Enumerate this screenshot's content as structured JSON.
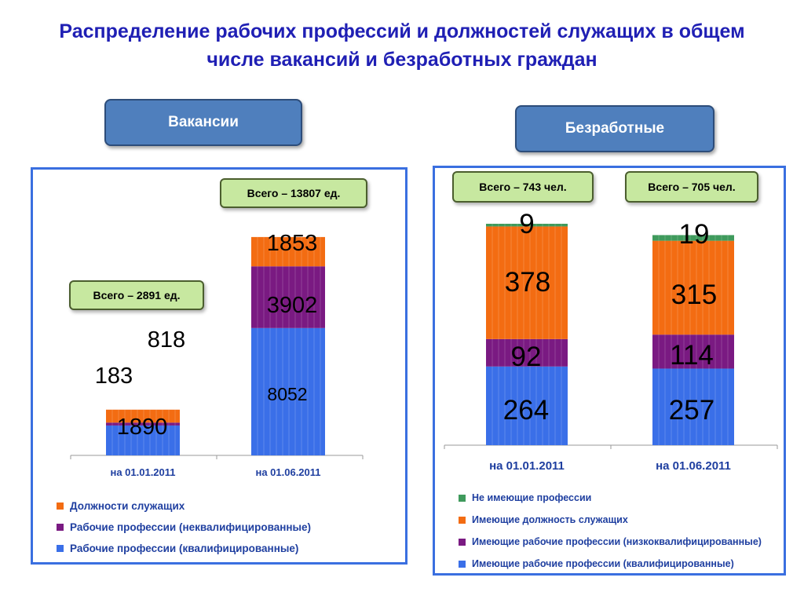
{
  "title": "Распределение рабочих профессий и должностей служащих в общем числе вакансий и безработных граждан",
  "left_header": "Вакансии",
  "right_header": "Безработные",
  "colors": {
    "qualified": "#3a6fe8",
    "unskilled": "#7a1a82",
    "employees": "#f36c12",
    "no_profession": "#3f9a5c"
  },
  "chart_data": [
    {
      "type": "bar",
      "stacked": true,
      "title": "Вакансии",
      "categories": [
        "на 01.01.2011",
        "на 01.06.2011"
      ],
      "series": [
        {
          "name": "Рабочие профессии (квалифицированные)",
          "values": [
            1890,
            8052
          ]
        },
        {
          "name": "Рабочие профессии (неквалифицированные)",
          "values": [
            183,
            3902
          ]
        },
        {
          "name": "Должности служащих",
          "values": [
            818,
            1853
          ]
        }
      ],
      "totals": [
        "Всего – 2891 ед.",
        "Всего – 13807 ед."
      ],
      "ylim": [
        0,
        14000
      ],
      "legend_position": "bottom"
    },
    {
      "type": "bar",
      "stacked": true,
      "title": "Безработные",
      "categories": [
        "на 01.01.2011",
        "на 01.06.2011"
      ],
      "series": [
        {
          "name": "Имеющие рабочие профессии (квалифицированные)",
          "values": [
            264,
            257
          ]
        },
        {
          "name": "Имеющие рабочие профессии (низкоквалифицированные)",
          "values": [
            92,
            114
          ]
        },
        {
          "name": "Имеющие должность служащих",
          "values": [
            378,
            315
          ]
        },
        {
          "name": "Не имеющие профессии",
          "values": [
            9,
            19
          ]
        }
      ],
      "totals": [
        "Всего – 743 чел.",
        "Всего – 705 чел."
      ],
      "ylim": [
        0,
        743
      ],
      "legend_position": "bottom"
    }
  ]
}
